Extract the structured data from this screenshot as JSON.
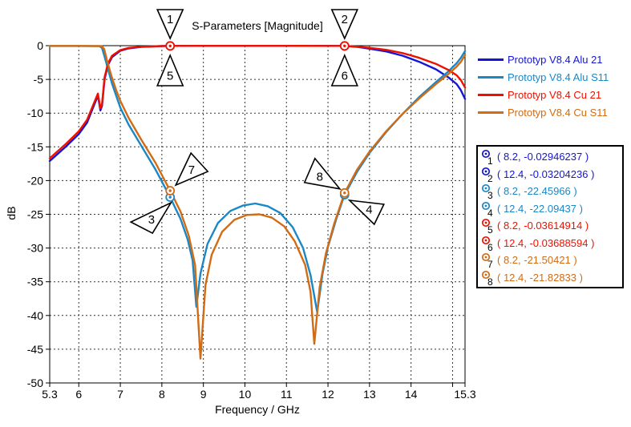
{
  "chart_data": {
    "type": "line",
    "title": "S-Parameters [Magnitude]",
    "xlabel": "Frequency / GHz",
    "ylabel": "dB",
    "xlim": [
      5.3,
      15.3
    ],
    "ylim": [
      -50,
      0
    ],
    "grid": "dashed",
    "legend_position": "right-outside",
    "x_ticks": [
      {
        "v": 5.3,
        "label": "5.3"
      },
      {
        "v": 6,
        "label": "6"
      },
      {
        "v": 7,
        "label": "7"
      },
      {
        "v": 8,
        "label": "8"
      },
      {
        "v": 9,
        "label": "9"
      },
      {
        "v": 10,
        "label": "10"
      },
      {
        "v": 11,
        "label": "11"
      },
      {
        "v": 12,
        "label": "12"
      },
      {
        "v": 13,
        "label": "13"
      },
      {
        "v": 14,
        "label": "14"
      },
      {
        "v": 15,
        "label": ""
      },
      {
        "v": 15.3,
        "label": "15.3"
      }
    ],
    "y_ticks": [
      {
        "v": 0,
        "label": "0"
      },
      {
        "v": -5,
        "label": "-5"
      },
      {
        "v": -10,
        "label": "-10"
      },
      {
        "v": -15,
        "label": "-15"
      },
      {
        "v": -20,
        "label": "-20"
      },
      {
        "v": -25,
        "label": "-25"
      },
      {
        "v": -30,
        "label": "-30"
      },
      {
        "v": -35,
        "label": "-35"
      },
      {
        "v": -40,
        "label": "-40"
      },
      {
        "v": -45,
        "label": "-45"
      },
      {
        "v": -50,
        "label": "-50"
      }
    ],
    "x_gridlines": [
      6,
      7,
      8,
      9,
      10,
      11,
      12,
      13,
      14,
      15
    ],
    "y_gridlines": [
      -5,
      -10,
      -15,
      -20,
      -25,
      -30,
      -35,
      -40,
      -45
    ],
    "series": [
      {
        "name": "Prototyp V8.4 Alu 21",
        "color": "#1515d6",
        "points": [
          [
            5.3,
            -17.1
          ],
          [
            5.7,
            -14.9
          ],
          [
            6.0,
            -13.1
          ],
          [
            6.2,
            -11.4
          ],
          [
            6.46,
            -7.4
          ],
          [
            6.52,
            -9.6
          ],
          [
            6.56,
            -8.9
          ],
          [
            6.62,
            -5.0
          ],
          [
            6.7,
            -2.9
          ],
          [
            6.8,
            -1.7
          ],
          [
            7.0,
            -0.75
          ],
          [
            7.2,
            -0.4
          ],
          [
            7.5,
            -0.18
          ],
          [
            8.0,
            -0.06
          ],
          [
            8.2,
            -0.029
          ],
          [
            9.0,
            -0.02
          ],
          [
            10.0,
            -0.02
          ],
          [
            11.0,
            -0.02
          ],
          [
            12.0,
            -0.028
          ],
          [
            12.4,
            -0.032
          ],
          [
            12.7,
            -0.18
          ],
          [
            13.0,
            -0.45
          ],
          [
            13.4,
            -0.85
          ],
          [
            13.8,
            -1.5
          ],
          [
            14.2,
            -2.4
          ],
          [
            14.6,
            -3.5
          ],
          [
            14.9,
            -4.7
          ],
          [
            15.1,
            -5.7
          ],
          [
            15.2,
            -6.6
          ],
          [
            15.3,
            -7.9
          ]
        ]
      },
      {
        "name": "Prototyp V8.4 Alu S11",
        "color": "#1b87c4",
        "points": [
          [
            5.3,
            -0.05
          ],
          [
            6.0,
            -0.05
          ],
          [
            6.5,
            -0.07
          ],
          [
            6.56,
            -0.35
          ],
          [
            6.62,
            -1.6
          ],
          [
            6.7,
            -3.4
          ],
          [
            6.8,
            -5.6
          ],
          [
            7.0,
            -9.2
          ],
          [
            7.2,
            -11.7
          ],
          [
            7.5,
            -14.8
          ],
          [
            7.85,
            -18.4
          ],
          [
            8.2,
            -22.45966
          ],
          [
            8.45,
            -25.7
          ],
          [
            8.62,
            -28.7
          ],
          [
            8.74,
            -31.8
          ],
          [
            8.83,
            -38.7
          ],
          [
            8.93,
            -33.8
          ],
          [
            9.1,
            -29.4
          ],
          [
            9.35,
            -26.3
          ],
          [
            9.65,
            -24.5
          ],
          [
            9.95,
            -23.7
          ],
          [
            10.25,
            -23.4
          ],
          [
            10.55,
            -23.8
          ],
          [
            10.85,
            -24.8
          ],
          [
            11.15,
            -26.9
          ],
          [
            11.4,
            -30.0
          ],
          [
            11.58,
            -34.0
          ],
          [
            11.74,
            -39.5
          ],
          [
            11.87,
            -33.8
          ],
          [
            12.0,
            -29.8
          ],
          [
            12.2,
            -25.7
          ],
          [
            12.4,
            -22.09437
          ],
          [
            12.7,
            -18.7
          ],
          [
            13.0,
            -15.9
          ],
          [
            13.4,
            -12.8
          ],
          [
            13.8,
            -10.1
          ],
          [
            14.2,
            -7.6
          ],
          [
            14.6,
            -5.4
          ],
          [
            14.9,
            -3.8
          ],
          [
            15.1,
            -2.6
          ],
          [
            15.2,
            -1.8
          ],
          [
            15.3,
            -0.8
          ]
        ]
      },
      {
        "name": "Prototyp V8.4 Cu 21",
        "color": "#ee1100",
        "points": [
          [
            5.3,
            -16.7
          ],
          [
            5.7,
            -14.5
          ],
          [
            6.0,
            -12.7
          ],
          [
            6.2,
            -11.0
          ],
          [
            6.46,
            -7.1
          ],
          [
            6.52,
            -9.3
          ],
          [
            6.56,
            -8.6
          ],
          [
            6.62,
            -4.7
          ],
          [
            6.7,
            -2.7
          ],
          [
            6.8,
            -1.5
          ],
          [
            7.0,
            -0.65
          ],
          [
            7.2,
            -0.33
          ],
          [
            7.5,
            -0.15
          ],
          [
            8.0,
            -0.06
          ],
          [
            8.2,
            -0.036
          ],
          [
            9.0,
            -0.025
          ],
          [
            10.0,
            -0.02
          ],
          [
            11.0,
            -0.025
          ],
          [
            12.0,
            -0.03
          ],
          [
            12.4,
            -0.037
          ],
          [
            12.7,
            -0.14
          ],
          [
            13.0,
            -0.32
          ],
          [
            13.4,
            -0.62
          ],
          [
            13.8,
            -1.1
          ],
          [
            14.2,
            -1.8
          ],
          [
            14.6,
            -2.7
          ],
          [
            14.9,
            -3.6
          ],
          [
            15.1,
            -4.4
          ],
          [
            15.2,
            -5.1
          ],
          [
            15.3,
            -6.2
          ]
        ]
      },
      {
        "name": "Prototyp V8.4 Cu S11",
        "color": "#d16c15",
        "points": [
          [
            5.3,
            -0.04
          ],
          [
            6.0,
            -0.04
          ],
          [
            6.55,
            -0.06
          ],
          [
            6.61,
            -0.5
          ],
          [
            6.68,
            -2.2
          ],
          [
            6.78,
            -4.4
          ],
          [
            6.9,
            -6.6
          ],
          [
            7.0,
            -8.2
          ],
          [
            7.2,
            -10.7
          ],
          [
            7.5,
            -13.9
          ],
          [
            7.85,
            -17.4
          ],
          [
            8.2,
            -21.50421
          ],
          [
            8.45,
            -24.6
          ],
          [
            8.65,
            -28.2
          ],
          [
            8.8,
            -32.5
          ],
          [
            8.93,
            -46.4
          ],
          [
            9.05,
            -35.5
          ],
          [
            9.2,
            -31.0
          ],
          [
            9.45,
            -27.6
          ],
          [
            9.75,
            -25.8
          ],
          [
            10.05,
            -25.1
          ],
          [
            10.35,
            -25.0
          ],
          [
            10.65,
            -25.5
          ],
          [
            10.95,
            -26.8
          ],
          [
            11.2,
            -29.0
          ],
          [
            11.45,
            -32.5
          ],
          [
            11.58,
            -36.5
          ],
          [
            11.67,
            -44.2
          ],
          [
            11.8,
            -35.8
          ],
          [
            11.95,
            -30.8
          ],
          [
            12.15,
            -26.4
          ],
          [
            12.4,
            -21.82833
          ],
          [
            12.7,
            -18.4
          ],
          [
            13.0,
            -15.7
          ],
          [
            13.4,
            -12.7
          ],
          [
            13.8,
            -10.1
          ],
          [
            14.2,
            -7.8
          ],
          [
            14.6,
            -5.7
          ],
          [
            14.9,
            -4.2
          ],
          [
            15.1,
            -3.1
          ],
          [
            15.2,
            -2.4
          ],
          [
            15.3,
            -1.4
          ]
        ]
      }
    ],
    "markers": [
      {
        "n": "1",
        "series": 0,
        "x": 8.2,
        "y": -0.02946237,
        "flag": "top",
        "text": "( 8.2, -0.02946237 )"
      },
      {
        "n": "2",
        "series": 0,
        "x": 12.4,
        "y": -0.03204236,
        "flag": "top",
        "text": "( 12.4, -0.03204236 )"
      },
      {
        "n": "3",
        "series": 1,
        "x": 8.2,
        "y": -22.45966,
        "flag": "sw",
        "text": "( 8.2, -22.45966 )"
      },
      {
        "n": "4",
        "series": 1,
        "x": 12.4,
        "y": -22.09437,
        "flag": "se",
        "text": "( 12.4, -22.09437 )"
      },
      {
        "n": "5",
        "series": 2,
        "x": 8.2,
        "y": -0.03614914,
        "flag": "bottom0",
        "text": "( 8.2, -0.03614914 )"
      },
      {
        "n": "6",
        "series": 2,
        "x": 12.4,
        "y": -0.03688594,
        "flag": "bottom0",
        "text": "( 12.4, -0.03688594 )"
      },
      {
        "n": "7",
        "series": 3,
        "x": 8.2,
        "y": -21.50421,
        "flag": "ne",
        "text": "( 8.2, -21.50421 )"
      },
      {
        "n": "8",
        "series": 3,
        "x": 12.4,
        "y": -21.82833,
        "flag": "nw",
        "text": "( 12.4, -21.82833 )"
      }
    ],
    "colors": {
      "grid": "#333333",
      "frame": "#000000",
      "flag_fill": "#ffffff",
      "flag_stroke": "#000000",
      "text": "#000000"
    }
  }
}
